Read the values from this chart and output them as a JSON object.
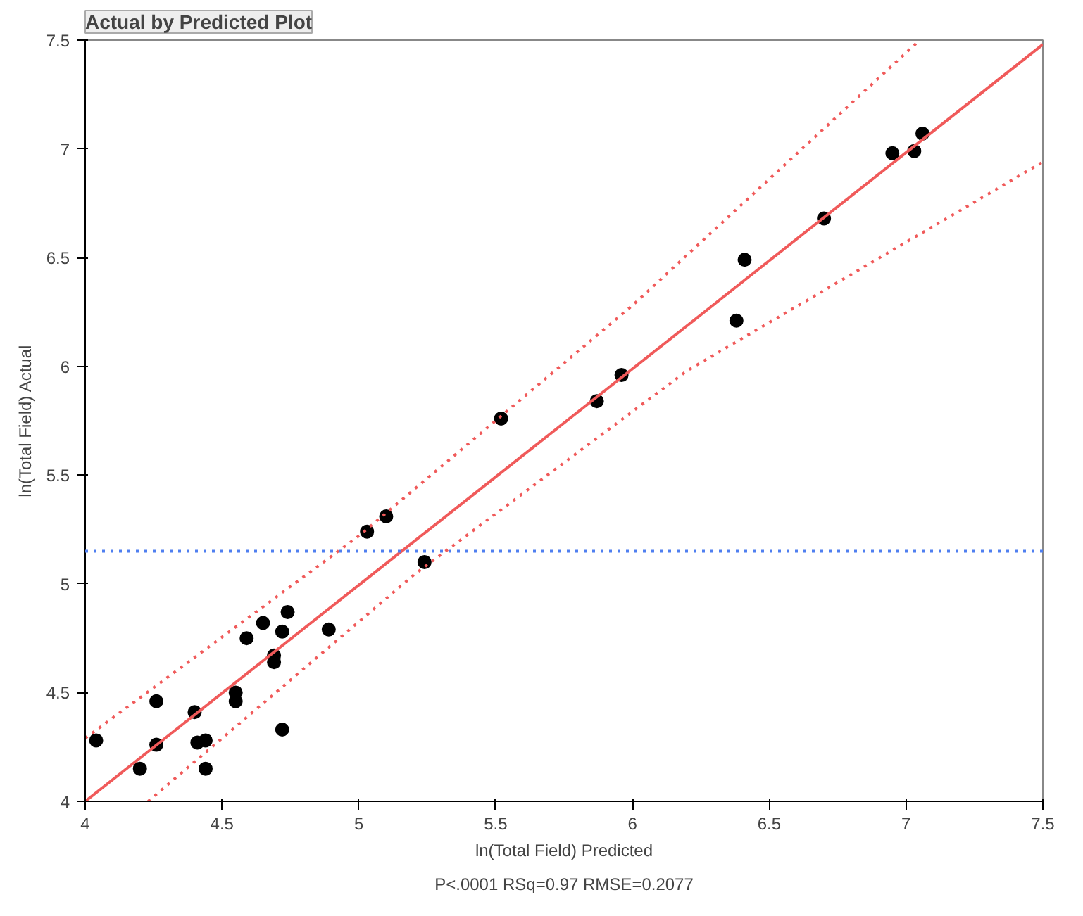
{
  "chart_data": {
    "type": "scatter",
    "title": "Actual by Predicted Plot",
    "xlabel": "ln(Total Field) Predicted",
    "ylabel": "ln(Total Field) Actual",
    "annotations": [
      "P<.0001 RSq=0.97 RMSE=0.2077"
    ],
    "xlim": [
      4,
      7.5
    ],
    "ylim": [
      4,
      7.5
    ],
    "xticks": [
      4,
      4.5,
      5,
      5.5,
      6,
      6.5,
      7,
      7.5
    ],
    "yticks": [
      4,
      4.5,
      5,
      5.5,
      6,
      6.5,
      7,
      7.5
    ],
    "grid": false,
    "series": [
      {
        "color": "#000000",
        "marker": "circle",
        "x": [
          4.04,
          4.2,
          4.26,
          4.26,
          4.4,
          4.41,
          4.44,
          4.44,
          4.55,
          4.55,
          4.59,
          4.65,
          4.69,
          4.69,
          4.72,
          4.72,
          4.74,
          4.89,
          5.03,
          5.1,
          5.24,
          5.52,
          5.87,
          5.96,
          6.38,
          6.41,
          6.7,
          6.95,
          7.03,
          7.06
        ],
        "values": [
          4.28,
          4.15,
          4.46,
          4.26,
          4.41,
          4.27,
          4.28,
          4.15,
          4.5,
          4.46,
          4.75,
          4.82,
          4.64,
          4.67,
          4.78,
          4.33,
          4.87,
          4.79,
          5.24,
          5.31,
          5.1,
          5.76,
          5.84,
          5.96,
          6.21,
          6.49,
          6.68,
          6.98,
          6.99,
          7.07
        ]
      },
      {
        "type": "line",
        "color": "#f05a5a",
        "line_style": "solid",
        "marker": "none",
        "x": [
          4,
          7.5
        ],
        "values": [
          4,
          7.48
        ]
      },
      {
        "type": "line",
        "color": "#f05a5a",
        "line_style": "dotted",
        "marker": "none",
        "x": [
          4,
          5,
          6,
          7.05
        ],
        "values": [
          4.29,
          5.22,
          6.28,
          7.5
        ]
      },
      {
        "type": "line",
        "color": "#f05a5a",
        "line_style": "dotted",
        "marker": "none",
        "x": [
          4.23,
          5.2,
          6.2,
          7.5
        ],
        "values": [
          4,
          5.04,
          5.98,
          6.94
        ]
      }
    ],
    "ref_lines": [
      {
        "axis": "y",
        "value": 5.15,
        "color": "#4f7ff0",
        "line_style": "dotted"
      }
    ]
  }
}
